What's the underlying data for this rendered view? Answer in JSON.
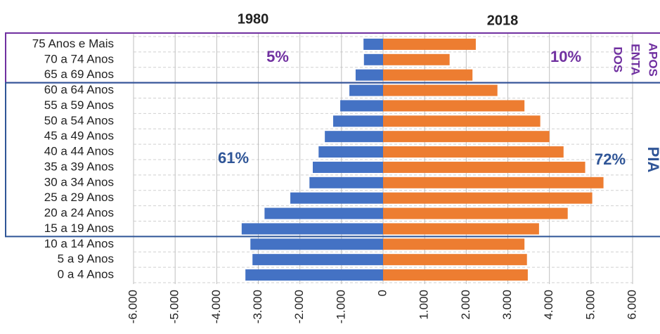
{
  "chart_data": {
    "type": "pyramid",
    "categories": [
      "75 Anos e Mais",
      "70 a 74 Anos",
      "65 a 69 Anos",
      "60 a 64 Anos",
      "55 a 59 Anos",
      "50 a 54 Anos",
      "45 a 49 Anos",
      "40 a 44 Anos",
      "35 a 39 Anos",
      "30 a 34 Anos",
      "25 a 29 Anos",
      "20 a 24 Anos",
      "15 a 19 Anos",
      "10 a 14 Anos",
      "5 a 9 Anos",
      "0 a 4 Anos"
    ],
    "series": [
      {
        "name": "1980",
        "color": "#4472c4",
        "values": [
          -470,
          -460,
          -660,
          -810,
          -1030,
          -1200,
          -1400,
          -1550,
          -1690,
          -1770,
          -2230,
          -2850,
          -3400,
          -3190,
          -3140,
          -3310
        ]
      },
      {
        "name": "2018",
        "color": "#ed7d31",
        "values": [
          2230,
          1600,
          2150,
          2750,
          3400,
          3780,
          4000,
          4340,
          4860,
          5300,
          5030,
          4440,
          3750,
          3400,
          3460,
          3480
        ]
      }
    ],
    "xlim": [
      -6000,
      6000
    ],
    "xticks": [
      {
        "value": -6000,
        "label": "-6.000"
      },
      {
        "value": -5000,
        "label": "-5.000"
      },
      {
        "value": -4000,
        "label": "-4.000"
      },
      {
        "value": -3000,
        "label": "-3.000"
      },
      {
        "value": -2000,
        "label": "-2.000"
      },
      {
        "value": -1000,
        "label": "-1.000"
      },
      0,
      {
        "value": 1000,
        "label": "1.000"
      },
      {
        "value": 2000,
        "label": "2.000"
      },
      {
        "value": 3000,
        "label": "3.000"
      },
      {
        "value": 4000,
        "label": "4.000"
      },
      {
        "value": 5000,
        "label": "5.000"
      },
      {
        "value": 6000,
        "label": "6.000"
      }
    ],
    "grid": true,
    "annotations": [
      {
        "text": "5%",
        "color": "#7030a0"
      },
      {
        "text": "10%",
        "color": "#7030a0"
      },
      {
        "text": "61%",
        "color": "#2f5597"
      },
      {
        "text": "72%",
        "color": "#2f5597"
      }
    ],
    "side_labels": [
      {
        "lines": [
          "APOS",
          "ENTA",
          "DOS"
        ],
        "color": "#7030a0"
      },
      {
        "lines": [
          "PIA"
        ],
        "color": "#2f5597"
      }
    ]
  }
}
